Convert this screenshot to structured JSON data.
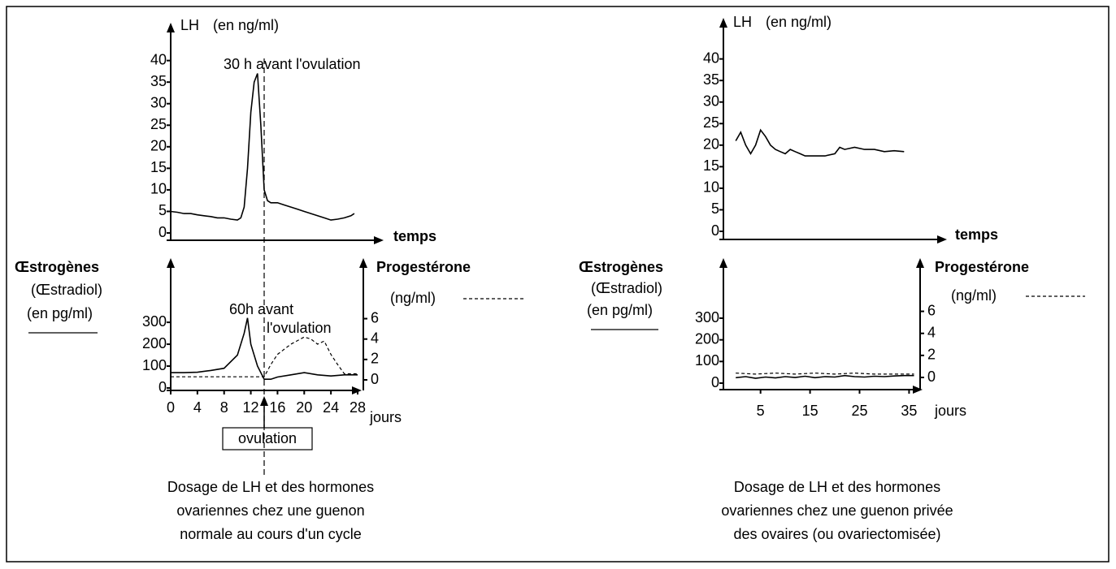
{
  "chart_data": [
    {
      "type": "line",
      "ylabel": "LH",
      "yunit": "(en ng/ml)",
      "xlabel": "temps",
      "annotations": [
        "30 h avant l'ovulation"
      ],
      "xlim": [
        0,
        28
      ],
      "ylim": [
        0,
        42
      ],
      "yticks": [
        0,
        5,
        10,
        15,
        20,
        25,
        30,
        35,
        40
      ],
      "series": [
        {
          "color": "#000000",
          "dash": false,
          "x": [
            0,
            1,
            2,
            3,
            4,
            5,
            6,
            7,
            8,
            9,
            10,
            10.5,
            11,
            11.5,
            12,
            12.5,
            13,
            13.5,
            14,
            14.5,
            15,
            16,
            17,
            18,
            19,
            20,
            21,
            22,
            23,
            24,
            25,
            26,
            27,
            27.5
          ],
          "values": [
            5,
            4.8,
            4.5,
            4.5,
            4.2,
            4,
            3.8,
            3.5,
            3.5,
            3.2,
            3,
            3.5,
            6,
            15,
            28,
            35,
            37,
            25,
            10,
            7.5,
            7,
            7,
            6.5,
            6,
            5.5,
            5,
            4.5,
            4,
            3.5,
            3,
            3.2,
            3.5,
            4,
            4.5
          ]
        }
      ]
    },
    {
      "type": "line",
      "xlabel": "jours",
      "annotations": [
        "60h avant",
        "l'ovulation",
        "ovulation"
      ],
      "ovulation_day": 14,
      "xlim": [
        0,
        28
      ],
      "xticks": [
        0,
        4,
        8,
        12,
        16,
        20,
        24,
        28
      ],
      "ylim": [
        0,
        330
      ],
      "yticks": [
        0,
        100,
        200,
        300
      ],
      "y2lim": [
        0,
        7
      ],
      "y2ticks": [
        0,
        2,
        4,
        6
      ],
      "series": [
        {
          "name": "Œstrogènes",
          "subtitle": "(Œstradiol)",
          "unit": "(en pg/ml)",
          "color": "#000000",
          "dash": false,
          "x": [
            0,
            2,
            4,
            6,
            8,
            10,
            11,
            11.5,
            12,
            13,
            14,
            15,
            16,
            18,
            20,
            22,
            24,
            26,
            28
          ],
          "values": [
            70,
            70,
            72,
            80,
            90,
            150,
            250,
            320,
            200,
            100,
            40,
            40,
            50,
            60,
            70,
            60,
            55,
            60,
            60
          ]
        },
        {
          "name": "Progestérone",
          "unit": "(ng/ml)",
          "color": "#000000",
          "dash": true,
          "axis": "y2",
          "x": [
            0,
            4,
            8,
            12,
            14,
            15,
            16,
            18,
            20,
            21,
            22,
            23,
            24,
            25,
            26,
            28
          ],
          "values": [
            0.3,
            0.3,
            0.3,
            0.3,
            0.3,
            1.5,
            2.5,
            3.5,
            4.2,
            4,
            3.5,
            3.8,
            2.5,
            1.5,
            0.6,
            0.6
          ]
        }
      ],
      "caption": [
        "Dosage de LH et des hormones",
        "ovariennes chez une guenon",
        "normale au cours d'un cycle"
      ]
    },
    {
      "type": "line",
      "ylabel": "LH",
      "yunit": "(en ng/ml)",
      "xlabel": "temps",
      "xlim": [
        -2.5,
        37
      ],
      "ylim": [
        0,
        42
      ],
      "yticks": [
        0,
        5,
        10,
        15,
        20,
        25,
        30,
        35,
        40
      ],
      "series": [
        {
          "color": "#000000",
          "dash": false,
          "x": [
            0,
            1,
            2,
            3,
            4,
            5,
            6,
            7,
            8,
            9,
            10,
            11,
            12,
            13,
            14,
            16,
            18,
            20,
            21,
            22,
            24,
            26,
            28,
            30,
            32,
            34
          ],
          "values": [
            21,
            23,
            20,
            18,
            20,
            23.5,
            22,
            20,
            19,
            18.5,
            18,
            19,
            18.5,
            18,
            17.5,
            17.5,
            17.5,
            18,
            19.5,
            19,
            19.5,
            19,
            19,
            18.5,
            18.7,
            18.5
          ]
        }
      ]
    },
    {
      "type": "line",
      "xlabel": "jours",
      "xlim": [
        -2.5,
        37
      ],
      "xticks": [
        5,
        15,
        25,
        35
      ],
      "ylim": [
        0,
        330
      ],
      "yticks": [
        0,
        100,
        200,
        300
      ],
      "y2lim": [
        0,
        7
      ],
      "y2ticks": [
        0,
        2,
        4,
        6
      ],
      "series": [
        {
          "name": "Œstrogènes",
          "subtitle": "(Œstradiol)",
          "unit": "(en pg/ml)",
          "color": "#000000",
          "dash": false,
          "x": [
            0,
            2,
            4,
            6,
            8,
            10,
            12,
            14,
            16,
            18,
            20,
            22,
            24,
            26,
            28,
            30,
            32,
            34,
            36
          ],
          "values": [
            25,
            30,
            22,
            28,
            24,
            30,
            26,
            32,
            25,
            30,
            28,
            35,
            30,
            28,
            32,
            30,
            33,
            35,
            35
          ]
        },
        {
          "name": "Progestérone",
          "unit": "(ng/ml)",
          "color": "#000000",
          "dash": true,
          "axis": "y2",
          "x": [
            0,
            4,
            8,
            12,
            16,
            20,
            24,
            28,
            32,
            36
          ],
          "values": [
            0.4,
            0.3,
            0.4,
            0.3,
            0.4,
            0.3,
            0.4,
            0.3,
            0.3,
            0.3
          ]
        }
      ],
      "caption": [
        "Dosage de LH et des hormones",
        "ovariennes chez une guenon privée",
        "des ovaires (ou ovariectomisée)"
      ]
    }
  ]
}
